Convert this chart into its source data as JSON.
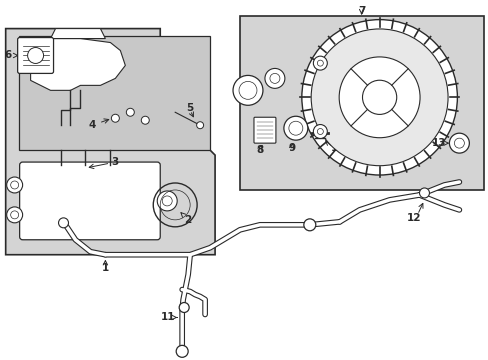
{
  "bg": "#ffffff",
  "box_bg": "#d4d4d4",
  "lc": "#2a2a2a",
  "lw": 0.9,
  "fig_w": 4.89,
  "fig_h": 3.6,
  "dpi": 100
}
